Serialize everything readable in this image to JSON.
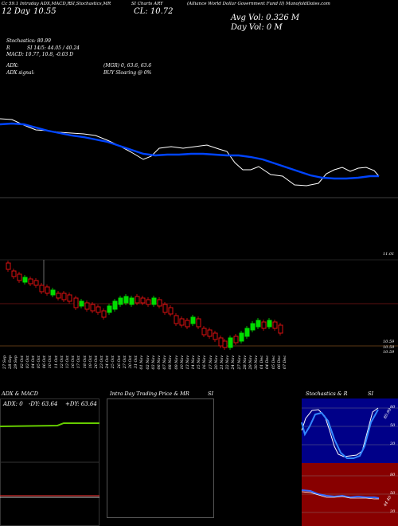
{
  "header": {
    "line1": [
      "Cc 59.1 Intraday ADX,MACD,R",
      "SI,Stochastics,MR",
      "SI Charts ARY",
      "(Alliance World Dollar Government Fund II) ManofoldDates.com"
    ],
    "date_label": "12 Day",
    "price_label": "10.55",
    "close_label": "CL: 10.72",
    "avg_vol": "Avg Vol: 0.326  M",
    "day_vol": "Day Vol: 0   M"
  },
  "indicators": {
    "stoch": "Stochastics: 80.99",
    "stoch_r": "R",
    "si": "SI 14/5: 44.05 / 40.24",
    "macd": "MACD: 10.77,  10.8, -0.03 D",
    "adx": "ADX:",
    "adx_val": "(MGR) 0, 63.6,  63.6",
    "adx_signal": "ADX  signal:",
    "buy": "BUY Sloaring @ 0%"
  },
  "price_levels": {
    "upper": "11.01",
    "lower1": "10.59",
    "lower2": "10.59",
    "lower3": "10.59"
  },
  "dates": [
    "27 Sep",
    "28 Sep",
    "29 Sep",
    "02 Oct",
    "03 Oct",
    "04 Oct",
    "05 Oct",
    "06 Oct",
    "10 Oct",
    "11 Oct",
    "12 Oct",
    "13 Oct",
    "16 Oct",
    "17 Oct",
    "18 Oct",
    "19 Oct",
    "20 Oct",
    "23 Oct",
    "24 Oct",
    "25 Oct",
    "26 Oct",
    "27 Oct",
    "30 Oct",
    "31 Oct",
    "01 Nov",
    "02 Nov",
    "03 Nov",
    "06 Nov",
    "07 Nov",
    "08 Nov",
    "09 Nov",
    "10 Nov",
    "13 Nov",
    "14 Nov",
    "15 Nov",
    "16 Nov",
    "17 Nov",
    "20 Nov",
    "21 Nov",
    "22 Nov",
    "24 Nov",
    "27 Nov",
    "28 Nov",
    "29 Nov",
    "30 Nov",
    "01 Dec",
    "04 Dec",
    "05 Dec",
    "06 Dec",
    "07 Dec"
  ],
  "panels": {
    "adx_macd": {
      "title": "ADX  & MACD",
      "adx": "ADX: 0",
      "dy_minus": "-DY: 63.64",
      "dy_plus": "+DY: 63.64"
    },
    "intraday": {
      "title": "Intra  Day Trading Price  & MR",
      "title_suffix": "SI"
    },
    "stoch_rsi": {
      "title": "Stochastics & R",
      "title_suffix": "SI",
      "scale_top": [
        "80",
        "50",
        "20"
      ],
      "scale_bottom": [
        "80",
        "50",
        "20"
      ],
      "tag_top": "80.99",
      "tag_bottom": "44 40"
    }
  },
  "colors": {
    "bull": "#00dd00",
    "bear": "#dd1111",
    "ma": "#0044ff",
    "macd_green": "#44cc00",
    "stoch_fill": "#000066",
    "rsi_fill": "#660000"
  }
}
